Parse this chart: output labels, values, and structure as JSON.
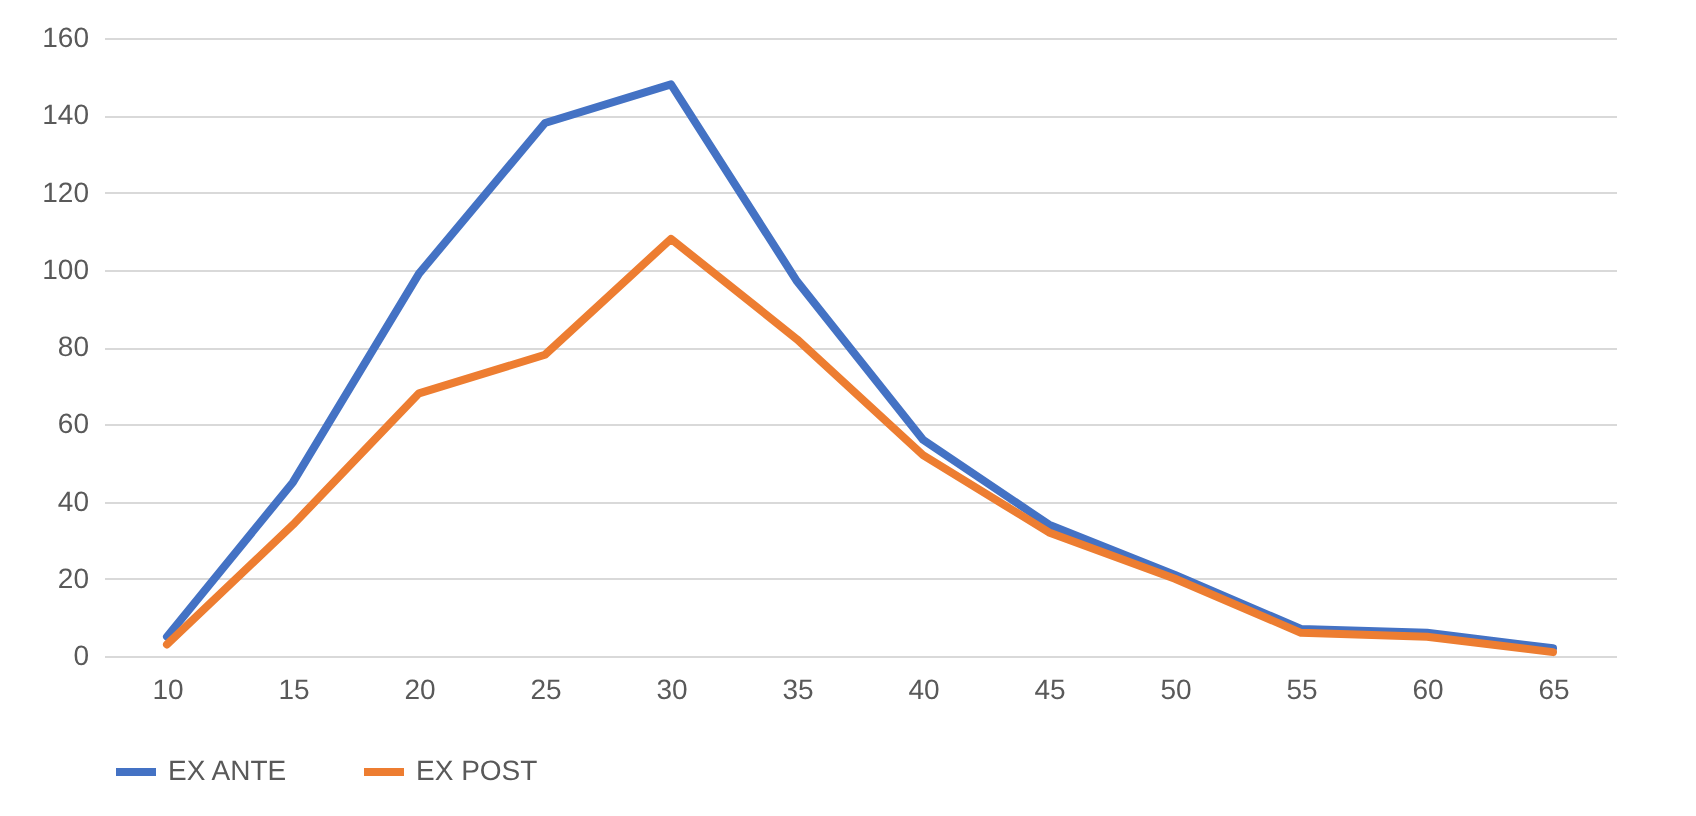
{
  "chart_data": {
    "type": "line",
    "categories": [
      "10",
      "15",
      "20",
      "25",
      "30",
      "35",
      "40",
      "45",
      "50",
      "55",
      "60",
      "65"
    ],
    "series": [
      {
        "name": "EX ANTE",
        "color": "#4472c4",
        "values": [
          5,
          45,
          99,
          138,
          148,
          97,
          56,
          34,
          21,
          7,
          6,
          2
        ]
      },
      {
        "name": "EX POST",
        "color": "#ed7d31",
        "values": [
          3,
          34,
          68,
          78,
          108,
          82,
          52,
          32,
          20,
          6,
          5,
          1
        ]
      }
    ],
    "ylim": [
      0,
      160
    ],
    "yticks": [
      0,
      20,
      40,
      60,
      80,
      100,
      120,
      140,
      160
    ],
    "grid": "y",
    "legend": "bottom",
    "marker": "none",
    "line_style": "solid"
  }
}
